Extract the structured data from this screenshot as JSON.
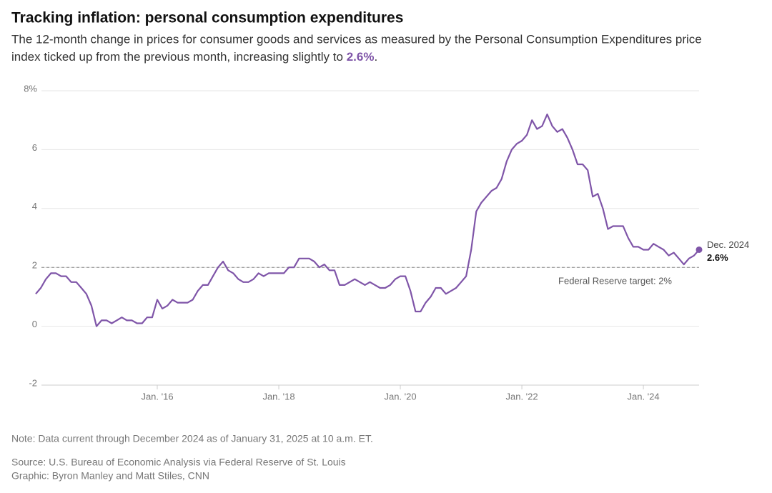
{
  "chart_data": {
    "type": "line",
    "title": "Tracking inflation: personal consumption expenditures",
    "subtitle": [
      "The 12-month change in prices for consumer goods and services as measured by the Personal Consumption Expenditures price",
      "index ticked up from the previous month, increasing slightly to ",
      "2.6%",
      "."
    ],
    "categories": [
      null,
      null,
      null,
      null,
      null,
      null,
      null,
      null,
      null,
      null,
      null,
      null,
      null,
      null,
      null,
      null,
      null,
      null,
      null,
      null,
      null,
      null,
      null,
      null,
      "Jan. '16",
      null,
      null,
      null,
      null,
      null,
      null,
      null,
      null,
      null,
      null,
      null,
      null,
      null,
      null,
      null,
      null,
      null,
      null,
      null,
      null,
      null,
      null,
      null,
      "Jan. '18",
      null,
      null,
      null,
      null,
      null,
      null,
      null,
      null,
      null,
      null,
      null,
      null,
      null,
      null,
      null,
      null,
      null,
      null,
      null,
      null,
      null,
      null,
      null,
      "Jan. '20",
      null,
      null,
      null,
      null,
      null,
      null,
      null,
      null,
      null,
      null,
      null,
      null,
      null,
      null,
      null,
      null,
      null,
      null,
      null,
      null,
      null,
      null,
      null,
      "Jan. '22",
      null,
      null,
      null,
      null,
      null,
      null,
      null,
      null,
      null,
      null,
      null,
      null,
      null,
      null,
      null,
      null,
      null,
      null,
      null,
      null,
      null,
      null,
      null,
      "Jan. '24",
      null,
      null,
      null,
      null,
      null,
      null,
      null,
      null,
      null,
      null,
      null
    ],
    "series": [
      {
        "name": "PCE price index",
        "color": "#7f55a8",
        "values": [
          1.1,
          1.3,
          1.6,
          1.8,
          1.8,
          1.7,
          1.7,
          1.5,
          1.5,
          1.3,
          1.1,
          0.7,
          0.0,
          0.2,
          0.2,
          0.1,
          0.2,
          0.3,
          0.2,
          0.2,
          0.1,
          0.1,
          0.3,
          0.3,
          0.9,
          0.6,
          0.7,
          0.9,
          0.8,
          0.8,
          0.8,
          0.9,
          1.2,
          1.4,
          1.4,
          1.7,
          2.0,
          2.2,
          1.9,
          1.8,
          1.6,
          1.5,
          1.5,
          1.6,
          1.8,
          1.7,
          1.8,
          1.8,
          1.8,
          1.8,
          2.0,
          2.0,
          2.3,
          2.3,
          2.3,
          2.2,
          2.0,
          2.1,
          1.9,
          1.9,
          1.4,
          1.4,
          1.5,
          1.6,
          1.5,
          1.4,
          1.5,
          1.4,
          1.3,
          1.3,
          1.4,
          1.6,
          1.7,
          1.7,
          1.2,
          0.5,
          0.5,
          0.8,
          1.0,
          1.3,
          1.3,
          1.1,
          1.2,
          1.3,
          1.5,
          1.7,
          2.6,
          3.9,
          4.2,
          4.4,
          4.6,
          4.7,
          5.0,
          5.6,
          6.0,
          6.2,
          6.3,
          6.5,
          7.0,
          6.7,
          6.8,
          7.2,
          6.8,
          6.6,
          6.7,
          6.4,
          6.0,
          5.5,
          5.5,
          5.3,
          4.4,
          4.5,
          4.0,
          3.3,
          3.4,
          3.4,
          3.4,
          3.0,
          2.7,
          2.7,
          2.6,
          2.6,
          2.8,
          2.7,
          2.6,
          2.4,
          2.5,
          2.3,
          2.1,
          2.3,
          2.4,
          2.6
        ]
      }
    ],
    "end_label": {
      "date": "Dec. 2024",
      "value_label": "2.6%"
    },
    "target": {
      "value": 2,
      "label": "Federal Reserve target: 2%"
    },
    "ylim": [
      -2,
      8
    ],
    "yticks": [
      -2,
      0,
      2,
      4,
      6,
      {
        "value": 8,
        "label": "8%"
      }
    ],
    "grid": true,
    "note": "Note: Data current through December 2024 as of January 31, 2025 at 10 a.m. ET.",
    "source": "Source: U.S. Bureau of Economic Analysis via Federal Reserve of St. Louis",
    "credit": "Graphic: Byron Manley and Matt Stiles, CNN"
  }
}
